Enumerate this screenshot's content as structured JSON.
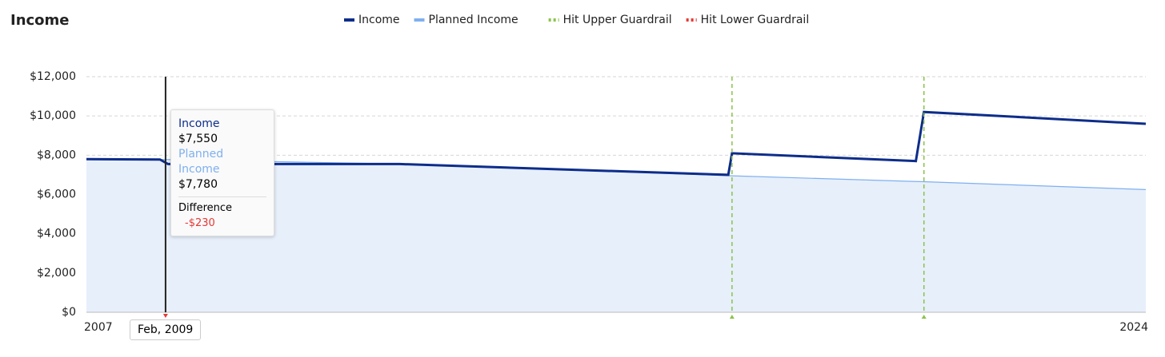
{
  "chart_data": {
    "type": "line",
    "title": "Income",
    "x": [
      2007,
      2008.18,
      2008.31,
      2012.03,
      2017.3,
      2017.36,
      2020.31,
      2020.44,
      2024
    ],
    "series": [
      {
        "name": "Income",
        "color": "#0d2d8a",
        "values": [
          7800,
          7780,
          7550,
          7550,
          7000,
          8100,
          7700,
          10200,
          9600
        ]
      },
      {
        "name": "Planned Income",
        "color": "#7fb0ef",
        "values": [
          7780,
          7780,
          7780,
          7550,
          6960,
          6950,
          6660,
          6650,
          6250
        ]
      }
    ],
    "guardrails": [
      {
        "name": "Hit Upper Guardrail",
        "color": "#8bc34a",
        "x": [
          2017.36,
          2020.44
        ]
      },
      {
        "name": "Hit Lower Guardrail",
        "color": "#e53935",
        "x": []
      }
    ],
    "xlim": [
      2007,
      2024
    ],
    "xticks": [
      2007,
      2024
    ],
    "ylim": [
      0,
      12000
    ],
    "yticks": [
      {
        "value": 0,
        "label": "$0"
      },
      {
        "value": 2000,
        "label": "$2,000"
      },
      {
        "value": 4000,
        "label": "$4,000"
      },
      {
        "value": 6000,
        "label": "$6,000"
      },
      {
        "value": 8000,
        "label": "$8,000"
      },
      {
        "value": 10000,
        "label": "$10,000"
      },
      {
        "value": 12000,
        "label": "$12,000"
      }
    ],
    "grid": true,
    "cursor": {
      "x": 2008.27,
      "label": "Feb, 2009"
    },
    "tooltip": {
      "income_label": "Income",
      "income_value": "$7,550",
      "planned_label": "Planned Income",
      "planned_value": "$7,780",
      "difference_label": "Difference",
      "difference_value": "-$230"
    }
  }
}
